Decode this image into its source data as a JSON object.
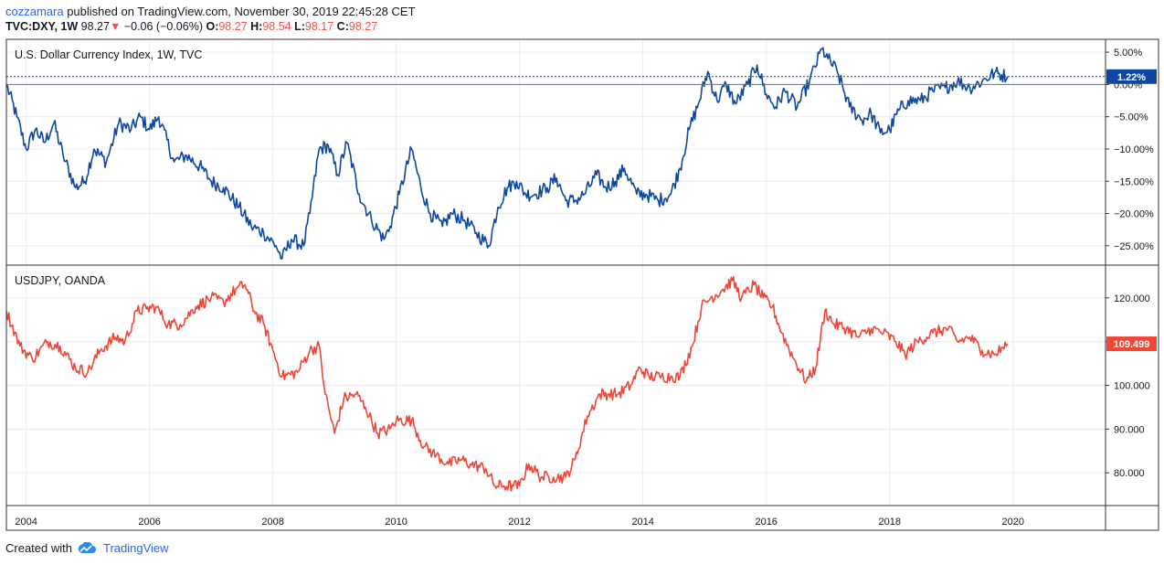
{
  "header": {
    "publisher": "cozzamara",
    "published_text": " published on TradingView.com, November 30, 2019 22:45:28 CET",
    "symbol": "TVC:DXY, 1W",
    "last": "98.27",
    "change": "−0.06 (−0.06%)",
    "o_label": "O:",
    "o": "98.27",
    "h_label": "H:",
    "h": "98.54",
    "l_label": "L:",
    "l": "98.17",
    "c_label": "C:",
    "c": "98.27"
  },
  "footer": {
    "created_with": "Created with",
    "brand": "TradingView"
  },
  "colors": {
    "dxy": "#0d47a1",
    "usdjpy": "#ef4637",
    "grid": "#e9ecf1",
    "border": "#333333",
    "text": "#131722"
  },
  "chart_data": [
    {
      "type": "line",
      "title": "U.S. Dollar Currency Index, 1W, TVC",
      "ylabel": "percent",
      "ylim": [
        -28,
        7
      ],
      "xlim": [
        2003.68,
        2021.5
      ],
      "yticks": [
        5,
        0,
        -5,
        -10,
        -15,
        -20,
        -25
      ],
      "ytick_labels": [
        "5.00%",
        "0.00%",
        "−5.00%",
        "−10.00%",
        "−15.00%",
        "−20.00%",
        "−25.00%"
      ],
      "last_value_label": "1.22%",
      "last_value": 1.22,
      "series": [
        {
          "x": [
            2003.68,
            2003.85,
            2004.0,
            2004.15,
            2004.3,
            2004.45,
            2004.6,
            2004.8,
            2004.95,
            2005.1,
            2005.3,
            2005.5,
            2005.7,
            2005.85,
            2006.0,
            2006.15,
            2006.4,
            2006.6,
            2006.85,
            2007.0,
            2007.2,
            2007.45,
            2007.65,
            2007.85,
            2008.05,
            2008.15,
            2008.3,
            2008.5,
            2008.6,
            2008.75,
            2008.9,
            2009.05,
            2009.2,
            2009.4,
            2009.6,
            2009.8,
            2009.9,
            2010.05,
            2010.25,
            2010.4,
            2010.55,
            2010.75,
            2010.9,
            2011.1,
            2011.3,
            2011.5,
            2011.65,
            2011.8,
            2011.95,
            2012.1,
            2012.25,
            2012.45,
            2012.6,
            2012.75,
            2012.9,
            2013.05,
            2013.25,
            2013.4,
            2013.55,
            2013.7,
            2013.9,
            2014.05,
            2014.25,
            2014.45,
            2014.6,
            2014.75,
            2014.9,
            2015.05,
            2015.2,
            2015.35,
            2015.5,
            2015.7,
            2015.85,
            2016.0,
            2016.15,
            2016.3,
            2016.5,
            2016.7,
            2016.9,
            2017.0,
            2017.15,
            2017.35,
            2017.55,
            2017.7,
            2017.85,
            2018.0,
            2018.15,
            2018.3,
            2018.5,
            2018.7,
            2018.9,
            2019.1,
            2019.3,
            2019.5,
            2019.7,
            2019.91
          ],
          "y": [
            0.0,
            -5.0,
            -10.0,
            -7.0,
            -9.0,
            -6.0,
            -11.0,
            -16.0,
            -15.0,
            -10.0,
            -12.0,
            -6.0,
            -7.0,
            -5.0,
            -7.0,
            -5.0,
            -12.0,
            -11.0,
            -13.0,
            -15.0,
            -16.0,
            -19.0,
            -22.0,
            -23.0,
            -25.0,
            -27.0,
            -24.0,
            -25.0,
            -20.0,
            -10.0,
            -9.5,
            -14.0,
            -9.0,
            -17.0,
            -21.0,
            -24.0,
            -22.0,
            -17.0,
            -10.0,
            -16.0,
            -20.0,
            -22.0,
            -20.0,
            -21.0,
            -23.0,
            -25.0,
            -19.0,
            -16.0,
            -15.0,
            -17.0,
            -17.0,
            -16.0,
            -14.5,
            -18.0,
            -18.0,
            -17.0,
            -14.0,
            -16.0,
            -15.0,
            -13.0,
            -17.0,
            -17.0,
            -18.0,
            -17.0,
            -13.0,
            -7.0,
            -3.0,
            2.0,
            -2.5,
            0.0,
            -3.0,
            0.0,
            3.0,
            -1.5,
            -3.5,
            -1.0,
            -3.5,
            0.5,
            5.5,
            4.0,
            2.0,
            -3.5,
            -5.5,
            -4.5,
            -7.5,
            -7.0,
            -4.0,
            -2.5,
            -2.5,
            -1.0,
            -0.5,
            0.5,
            -0.5,
            0.5,
            1.8,
            1.22
          ]
        }
      ]
    },
    {
      "type": "line",
      "title": "USDJPY, OANDA",
      "ylim": [
        72.5,
        127.5
      ],
      "xlim": [
        2003.68,
        2021.5
      ],
      "yticks": [
        120,
        110,
        100,
        90,
        80
      ],
      "ytick_labels": [
        "120.000",
        "110.000",
        "100.000",
        "90.000",
        "80.000"
      ],
      "last_value_label": "109.499",
      "last_value": 109.499,
      "x_tick_labels": [
        "2004",
        "2006",
        "2008",
        "2010",
        "2012",
        "2014",
        "2016",
        "2018",
        "2020"
      ],
      "x_ticks": [
        2004,
        2006,
        2008,
        2010,
        2012,
        2014,
        2016,
        2018,
        2020
      ],
      "series": [
        {
          "x": [
            2003.68,
            2003.9,
            2004.1,
            2004.35,
            2004.55,
            2004.8,
            2005.0,
            2005.2,
            2005.45,
            2005.6,
            2005.8,
            2005.95,
            2006.1,
            2006.3,
            2006.5,
            2006.75,
            2007.0,
            2007.2,
            2007.4,
            2007.55,
            2007.7,
            2007.85,
            2008.0,
            2008.15,
            2008.4,
            2008.6,
            2008.75,
            2008.85,
            2009.0,
            2009.15,
            2009.35,
            2009.5,
            2009.7,
            2009.9,
            2010.0,
            2010.25,
            2010.45,
            2010.65,
            2010.85,
            2011.05,
            2011.2,
            2011.45,
            2011.6,
            2011.75,
            2011.9,
            2012.0,
            2012.15,
            2012.35,
            2012.55,
            2012.75,
            2012.9,
            2013.1,
            2013.3,
            2013.45,
            2013.6,
            2013.8,
            2013.95,
            2014.1,
            2014.3,
            2014.45,
            2014.6,
            2014.8,
            2014.95,
            2015.1,
            2015.3,
            2015.45,
            2015.6,
            2015.8,
            2015.95,
            2016.1,
            2016.25,
            2016.45,
            2016.65,
            2016.8,
            2016.95,
            2017.1,
            2017.3,
            2017.5,
            2017.7,
            2017.9,
            2018.1,
            2018.25,
            2018.45,
            2018.7,
            2018.95,
            2019.1,
            2019.3,
            2019.5,
            2019.7,
            2019.91
          ],
          "y": [
            117.0,
            109.0,
            106.0,
            110.0,
            109.0,
            104.0,
            103.0,
            108.0,
            111.0,
            110.0,
            117.0,
            117.5,
            118.0,
            114.0,
            114.0,
            118.0,
            120.0,
            119.0,
            122.0,
            123.0,
            117.0,
            114.0,
            108.0,
            102.0,
            103.0,
            108.0,
            109.0,
            98.0,
            89.0,
            97.0,
            98.0,
            95.0,
            89.0,
            90.0,
            92.0,
            92.0,
            86.0,
            84.0,
            82.0,
            83.0,
            82.0,
            81.0,
            77.0,
            77.0,
            77.0,
            77.0,
            82.0,
            79.0,
            79.0,
            79.0,
            83.0,
            93.0,
            98.0,
            98.0,
            98.0,
            100.0,
            104.0,
            102.0,
            102.0,
            102.0,
            102.0,
            109.0,
            118.0,
            120.0,
            122.0,
            124.0,
            120.0,
            123.0,
            120.0,
            118.0,
            112.0,
            106.0,
            101.0,
            104.0,
            117.0,
            114.0,
            113.0,
            111.0,
            113.0,
            112.0,
            110.0,
            107.0,
            110.0,
            112.0,
            113.0,
            110.0,
            111.0,
            108.0,
            107.0,
            109.499
          ]
        }
      ]
    }
  ]
}
